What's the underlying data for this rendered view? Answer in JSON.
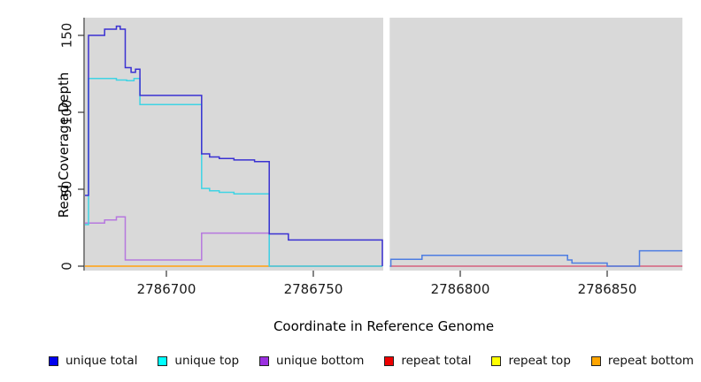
{
  "figure": {
    "background": "#ffffff",
    "plot_background": "#d9d9d9",
    "axis_color": "#333333"
  },
  "chart_data": {
    "type": "line",
    "subtype": "step",
    "title": "",
    "xlabel": "Coordinate in Reference Genome",
    "ylabel": "Read Coverage Depth",
    "x_domain": [
      2786672.3,
      2786875.6
    ],
    "y_domain": [
      0,
      160
    ],
    "x_ticks": [
      2786700,
      2786750,
      2786800,
      2786850
    ],
    "y_ticks": [
      0,
      50,
      100,
      150
    ],
    "grid": false,
    "gap_region": {
      "x_start": 2786773.8,
      "x_end": 2786776.0,
      "color": "#ffffff"
    },
    "series": [
      {
        "name": "repeat top",
        "color": "#f2e642",
        "points": [
          [
            2786672.3,
            0
          ],
          [
            2786773.5,
            0
          ]
        ]
      },
      {
        "name": "repeat bottom",
        "color": "#ff9d26",
        "points": [
          [
            2786672.3,
            0
          ],
          [
            2786773.5,
            0
          ]
        ]
      },
      {
        "name": "repeat total",
        "color": "#d6607d",
        "points": [
          [
            2786776,
            0
          ],
          [
            2786875.6,
            0
          ]
        ]
      },
      {
        "name": "unique bottom",
        "color": "#b678de",
        "points": [
          [
            2786672.3,
            28
          ],
          [
            2786679,
            30
          ],
          [
            2786683,
            32
          ],
          [
            2786686,
            4
          ],
          [
            2786712,
            21.5
          ],
          [
            2786735,
            0
          ],
          [
            2786773.5,
            0
          ]
        ]
      },
      {
        "name": "unique top",
        "color": "#3fd4e4",
        "points": [
          [
            2786672.3,
            27
          ],
          [
            2786673.5,
            122
          ],
          [
            2786683,
            121
          ],
          [
            2786686.5,
            120.5
          ],
          [
            2786689,
            122
          ],
          [
            2786691,
            105
          ],
          [
            2786712,
            50.5
          ],
          [
            2786714.7,
            49
          ],
          [
            2786718,
            48
          ],
          [
            2786723,
            47
          ],
          [
            2786735,
            0
          ],
          [
            2786773.5,
            0
          ]
        ]
      },
      {
        "name": "unique total",
        "color": "#3a31d2",
        "points": [
          [
            2786672.3,
            46
          ],
          [
            2786673.5,
            150
          ],
          [
            2786679,
            154
          ],
          [
            2786683,
            156
          ],
          [
            2786684.3,
            154
          ],
          [
            2786686,
            129
          ],
          [
            2786688,
            126
          ],
          [
            2786689.5,
            128
          ],
          [
            2786691,
            111
          ],
          [
            2786712,
            73
          ],
          [
            2786714.7,
            71
          ],
          [
            2786718,
            70
          ],
          [
            2786723,
            69
          ],
          [
            2786730,
            68
          ],
          [
            2786735,
            21
          ],
          [
            2786741.5,
            17
          ],
          [
            2786773.5,
            0
          ]
        ]
      },
      {
        "name": "unique total (after gap)",
        "color": "#4d7de2",
        "points": [
          [
            2786776,
            0
          ],
          [
            2786776.4,
            4.5
          ],
          [
            2786787,
            7
          ],
          [
            2786836.5,
            4
          ],
          [
            2786838,
            2
          ],
          [
            2786850,
            0
          ],
          [
            2786861,
            10
          ],
          [
            2786875.6,
            10
          ]
        ]
      }
    ],
    "legend": {
      "position": "bottom",
      "entries": [
        {
          "label": "unique total",
          "color": "#0000ee"
        },
        {
          "label": "unique top",
          "color": "#00ffff"
        },
        {
          "label": "unique bottom",
          "color": "#9b30e0"
        },
        {
          "label": "repeat total",
          "color": "#ee0000"
        },
        {
          "label": "repeat top",
          "color": "#ffff00"
        },
        {
          "label": "repeat bottom",
          "color": "#ffa500"
        }
      ]
    }
  }
}
